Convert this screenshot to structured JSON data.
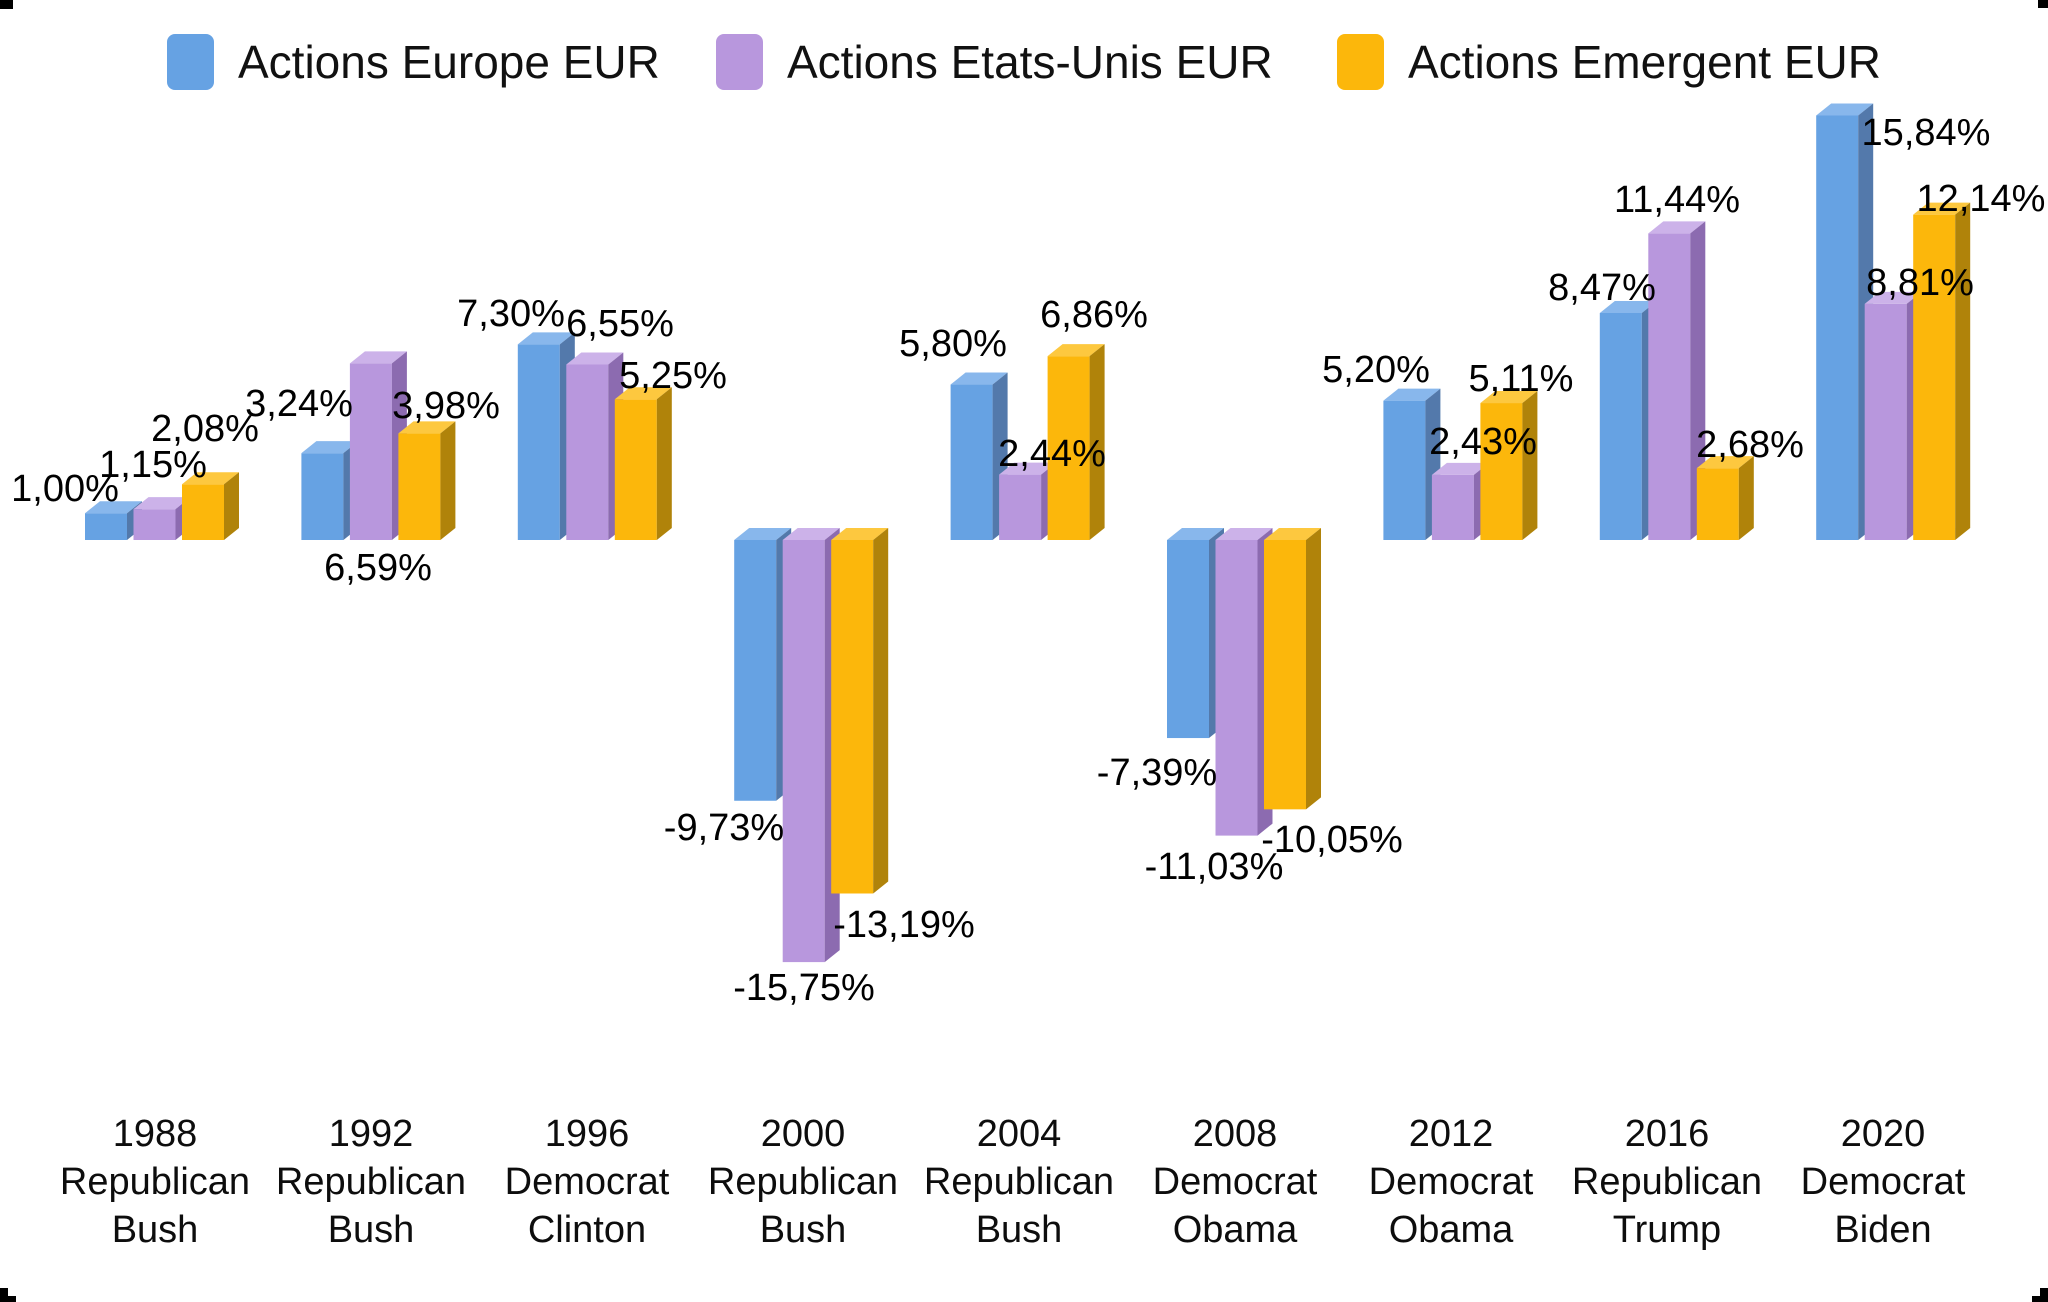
{
  "legend": {
    "items": [
      {
        "label": "Actions Europe EUR",
        "color": "#66a2e3"
      },
      {
        "label": "Actions Etats-Unis EUR",
        "color": "#b897dd"
      },
      {
        "label": "Actions Emergent EUR",
        "color": "#fcb70b"
      }
    ]
  },
  "chart_data": {
    "type": "bar",
    "style": "3d-column",
    "title": "",
    "xlabel": "",
    "ylabel": "",
    "gridlines": false,
    "value_axis_visible": false,
    "legend_position": "top",
    "value_format": "percent (French decimal comma)",
    "categories": [
      {
        "year": "1988",
        "party": "Republican",
        "president": "Bush"
      },
      {
        "year": "1992",
        "party": "Republican",
        "president": "Bush"
      },
      {
        "year": "1996",
        "party": "Democrat",
        "president": "Clinton"
      },
      {
        "year": "2000",
        "party": "Republican",
        "president": "Bush"
      },
      {
        "year": "2004",
        "party": "Republican",
        "president": "Bush"
      },
      {
        "year": "2008",
        "party": "Democrat",
        "president": "Obama"
      },
      {
        "year": "2012",
        "party": "Democrat",
        "president": "Obama"
      },
      {
        "year": "2016",
        "party": "Republican",
        "president": "Trump"
      },
      {
        "year": "2020",
        "party": "Democrat",
        "president": "Biden"
      }
    ],
    "series": [
      {
        "name": "Actions Europe EUR",
        "front_color": "#66a2e3",
        "top_color": "#88b7ec",
        "side_color": "#5379ab",
        "values": [
          1.0,
          3.24,
          7.3,
          -9.73,
          5.8,
          -7.39,
          5.2,
          8.47,
          15.84
        ],
        "labels": [
          "1,00%",
          "3,24%",
          "7,30%",
          "-9,73%",
          "5,80%",
          "-7,39%",
          "5,20%",
          "8,47%",
          "15,84%"
        ]
      },
      {
        "name": "Actions Etats-Unis EUR",
        "front_color": "#b897dd",
        "top_color": "#ccb2e9",
        "side_color": "#8c6bb0",
        "values": [
          1.15,
          6.59,
          6.55,
          -15.75,
          2.44,
          -11.03,
          2.43,
          11.44,
          8.81
        ],
        "labels": [
          "1,15%",
          "6,59%",
          "6,55%",
          "-15,75%",
          "2,44%",
          "-11,03%",
          "2,43%",
          "11,44%",
          "8,81%"
        ]
      },
      {
        "name": "Actions Emergent EUR",
        "front_color": "#fcb70b",
        "top_color": "#fdc83f",
        "side_color": "#b0830a",
        "values": [
          2.08,
          3.98,
          5.25,
          -13.19,
          6.86,
          -10.05,
          5.11,
          2.68,
          12.14
        ],
        "labels": [
          "2,08%",
          "3,98%",
          "5,25%",
          "-13,19%",
          "6,86%",
          "-10,05%",
          "5,11%",
          "2,68%",
          "12,14%"
        ]
      }
    ]
  }
}
